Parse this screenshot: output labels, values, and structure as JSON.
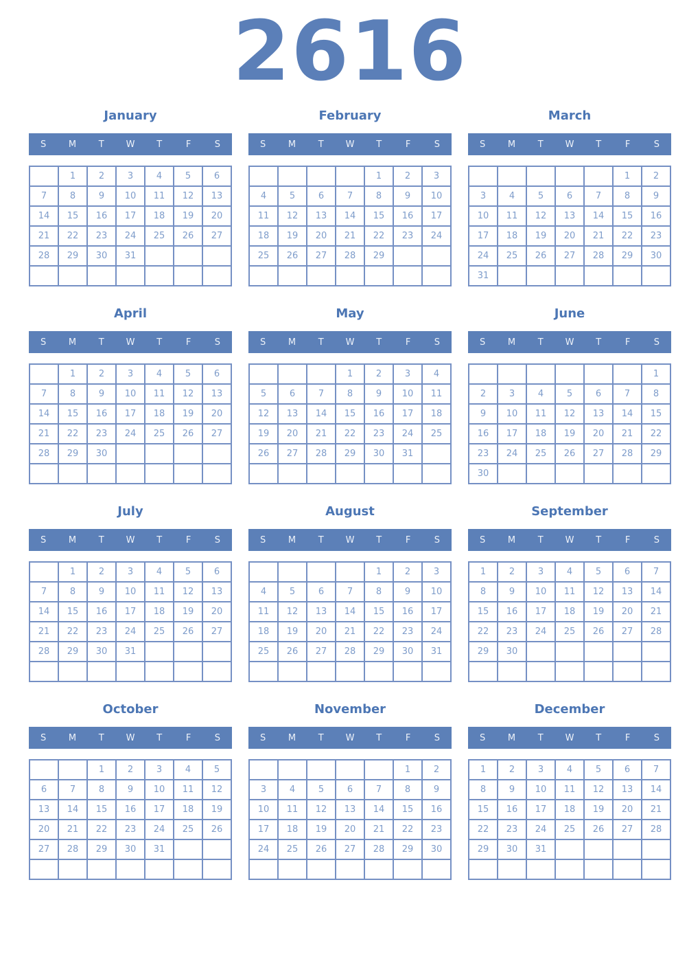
{
  "year": "2616",
  "weekday_headers": [
    "S",
    "M",
    "T",
    "W",
    "T",
    "F",
    "S"
  ],
  "colors": {
    "title_blue": "#5b7fb8",
    "month_title_blue": "#4c76b4",
    "weekday_bar_background": "#5c80b8",
    "weekday_bar_text": "#eef2f9",
    "grid_border": "#7590c4",
    "day_number_text": "#7e9cca"
  },
  "months": [
    {
      "name": "January",
      "weeks": [
        [
          "",
          "1",
          "2",
          "3",
          "4",
          "5",
          "6"
        ],
        [
          "7",
          "8",
          "9",
          "10",
          "11",
          "12",
          "13"
        ],
        [
          "14",
          "15",
          "16",
          "17",
          "18",
          "19",
          "20"
        ],
        [
          "21",
          "22",
          "23",
          "24",
          "25",
          "26",
          "27"
        ],
        [
          "28",
          "29",
          "30",
          "31",
          "",
          "",
          ""
        ],
        [
          "",
          "",
          "",
          "",
          "",
          "",
          ""
        ]
      ]
    },
    {
      "name": "February",
      "weeks": [
        [
          "",
          "",
          "",
          "",
          "1",
          "2",
          "3"
        ],
        [
          "4",
          "5",
          "6",
          "7",
          "8",
          "9",
          "10"
        ],
        [
          "11",
          "12",
          "13",
          "14",
          "15",
          "16",
          "17"
        ],
        [
          "18",
          "19",
          "20",
          "21",
          "22",
          "23",
          "24"
        ],
        [
          "25",
          "26",
          "27",
          "28",
          "29",
          "",
          ""
        ],
        [
          "",
          "",
          "",
          "",
          "",
          "",
          ""
        ]
      ]
    },
    {
      "name": "March",
      "weeks": [
        [
          "",
          "",
          "",
          "",
          "",
          "1",
          "2"
        ],
        [
          "3",
          "4",
          "5",
          "6",
          "7",
          "8",
          "9"
        ],
        [
          "10",
          "11",
          "12",
          "13",
          "14",
          "15",
          "16"
        ],
        [
          "17",
          "18",
          "19",
          "20",
          "21",
          "22",
          "23"
        ],
        [
          "24",
          "25",
          "26",
          "27",
          "28",
          "29",
          "30"
        ],
        [
          "31",
          "",
          "",
          "",
          "",
          "",
          ""
        ]
      ]
    },
    {
      "name": "April",
      "weeks": [
        [
          "",
          "1",
          "2",
          "3",
          "4",
          "5",
          "6"
        ],
        [
          "7",
          "8",
          "9",
          "10",
          "11",
          "12",
          "13"
        ],
        [
          "14",
          "15",
          "16",
          "17",
          "18",
          "19",
          "20"
        ],
        [
          "21",
          "22",
          "23",
          "24",
          "25",
          "26",
          "27"
        ],
        [
          "28",
          "29",
          "30",
          "",
          "",
          "",
          ""
        ],
        [
          "",
          "",
          "",
          "",
          "",
          "",
          ""
        ]
      ]
    },
    {
      "name": "May",
      "weeks": [
        [
          "",
          "",
          "",
          "1",
          "2",
          "3",
          "4"
        ],
        [
          "5",
          "6",
          "7",
          "8",
          "9",
          "10",
          "11"
        ],
        [
          "12",
          "13",
          "14",
          "15",
          "16",
          "17",
          "18"
        ],
        [
          "19",
          "20",
          "21",
          "22",
          "23",
          "24",
          "25"
        ],
        [
          "26",
          "27",
          "28",
          "29",
          "30",
          "31",
          ""
        ],
        [
          "",
          "",
          "",
          "",
          "",
          "",
          ""
        ]
      ]
    },
    {
      "name": "June",
      "weeks": [
        [
          "",
          "",
          "",
          "",
          "",
          "",
          "1"
        ],
        [
          "2",
          "3",
          "4",
          "5",
          "6",
          "7",
          "8"
        ],
        [
          "9",
          "10",
          "11",
          "12",
          "13",
          "14",
          "15"
        ],
        [
          "16",
          "17",
          "18",
          "19",
          "20",
          "21",
          "22"
        ],
        [
          "23",
          "24",
          "25",
          "26",
          "27",
          "28",
          "29"
        ],
        [
          "30",
          "",
          "",
          "",
          "",
          "",
          ""
        ]
      ]
    },
    {
      "name": "July",
      "weeks": [
        [
          "",
          "1",
          "2",
          "3",
          "4",
          "5",
          "6"
        ],
        [
          "7",
          "8",
          "9",
          "10",
          "11",
          "12",
          "13"
        ],
        [
          "14",
          "15",
          "16",
          "17",
          "18",
          "19",
          "20"
        ],
        [
          "21",
          "22",
          "23",
          "24",
          "25",
          "26",
          "27"
        ],
        [
          "28",
          "29",
          "30",
          "31",
          "",
          "",
          ""
        ],
        [
          "",
          "",
          "",
          "",
          "",
          "",
          ""
        ]
      ]
    },
    {
      "name": "August",
      "weeks": [
        [
          "",
          "",
          "",
          "",
          "1",
          "2",
          "3"
        ],
        [
          "4",
          "5",
          "6",
          "7",
          "8",
          "9",
          "10"
        ],
        [
          "11",
          "12",
          "13",
          "14",
          "15",
          "16",
          "17"
        ],
        [
          "18",
          "19",
          "20",
          "21",
          "22",
          "23",
          "24"
        ],
        [
          "25",
          "26",
          "27",
          "28",
          "29",
          "30",
          "31"
        ],
        [
          "",
          "",
          "",
          "",
          "",
          "",
          ""
        ]
      ]
    },
    {
      "name": "September",
      "weeks": [
        [
          "1",
          "2",
          "3",
          "4",
          "5",
          "6",
          "7"
        ],
        [
          "8",
          "9",
          "10",
          "11",
          "12",
          "13",
          "14"
        ],
        [
          "15",
          "16",
          "17",
          "18",
          "19",
          "20",
          "21"
        ],
        [
          "22",
          "23",
          "24",
          "25",
          "26",
          "27",
          "28"
        ],
        [
          "29",
          "30",
          "",
          "",
          "",
          "",
          ""
        ],
        [
          "",
          "",
          "",
          "",
          "",
          "",
          ""
        ]
      ]
    },
    {
      "name": "October",
      "weeks": [
        [
          "",
          "",
          "1",
          "2",
          "3",
          "4",
          "5"
        ],
        [
          "6",
          "7",
          "8",
          "9",
          "10",
          "11",
          "12"
        ],
        [
          "13",
          "14",
          "15",
          "16",
          "17",
          "18",
          "19"
        ],
        [
          "20",
          "21",
          "22",
          "23",
          "24",
          "25",
          "26"
        ],
        [
          "27",
          "28",
          "29",
          "30",
          "31",
          "",
          ""
        ],
        [
          "",
          "",
          "",
          "",
          "",
          "",
          ""
        ]
      ]
    },
    {
      "name": "November",
      "weeks": [
        [
          "",
          "",
          "",
          "",
          "",
          "1",
          "2"
        ],
        [
          "3",
          "4",
          "5",
          "6",
          "7",
          "8",
          "9"
        ],
        [
          "10",
          "11",
          "12",
          "13",
          "14",
          "15",
          "16"
        ],
        [
          "17",
          "18",
          "19",
          "20",
          "21",
          "22",
          "23"
        ],
        [
          "24",
          "25",
          "26",
          "27",
          "28",
          "29",
          "30"
        ],
        [
          "",
          "",
          "",
          "",
          "",
          "",
          ""
        ]
      ]
    },
    {
      "name": "December",
      "weeks": [
        [
          "1",
          "2",
          "3",
          "4",
          "5",
          "6",
          "7"
        ],
        [
          "8",
          "9",
          "10",
          "11",
          "12",
          "13",
          "14"
        ],
        [
          "15",
          "16",
          "17",
          "18",
          "19",
          "20",
          "21"
        ],
        [
          "22",
          "23",
          "24",
          "25",
          "26",
          "27",
          "28"
        ],
        [
          "29",
          "30",
          "31",
          "",
          "",
          "",
          ""
        ],
        [
          "",
          "",
          "",
          "",
          "",
          "",
          ""
        ]
      ]
    }
  ]
}
